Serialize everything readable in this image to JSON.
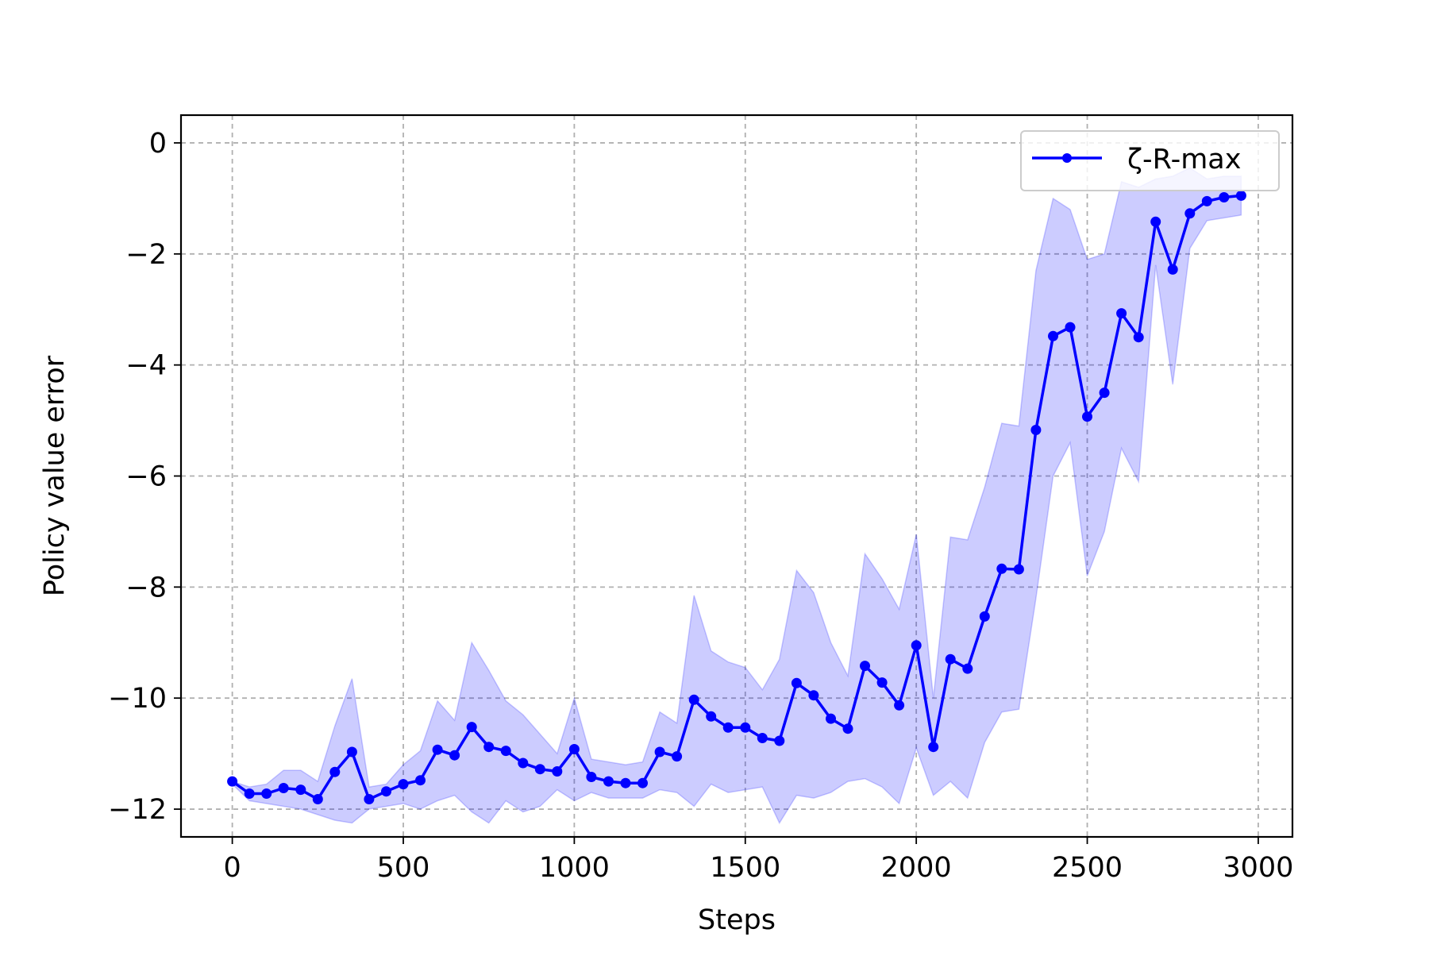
{
  "chart_data": {
    "type": "line",
    "title": "",
    "xlabel": "Steps",
    "ylabel": "Policy value error",
    "xlim": [
      -150,
      3100
    ],
    "ylim": [
      -12.5,
      0.5
    ],
    "xticks": [
      0,
      500,
      1000,
      1500,
      2000,
      2500,
      3000
    ],
    "xtick_labels": [
      "0",
      "500",
      "1000",
      "1500",
      "2000",
      "2500",
      "3000"
    ],
    "yticks": [
      0,
      -2,
      -4,
      -6,
      -8,
      -10,
      -12
    ],
    "ytick_labels": [
      "0",
      "−2",
      "−4",
      "−6",
      "−8",
      "−10",
      "−12"
    ],
    "grid": true,
    "legend_position": "top-right",
    "series": [
      {
        "name": "ζ-R-max",
        "color": "#0000ff",
        "band_color": "#0000ff",
        "band_opacity": 0.2,
        "x": [
          0,
          50,
          100,
          150,
          200,
          250,
          300,
          350,
          400,
          450,
          500,
          550,
          600,
          650,
          700,
          750,
          800,
          850,
          900,
          950,
          1000,
          1050,
          1100,
          1150,
          1200,
          1250,
          1300,
          1350,
          1400,
          1450,
          1500,
          1550,
          1600,
          1650,
          1700,
          1750,
          1800,
          1850,
          1900,
          1950,
          2000,
          2050,
          2100,
          2150,
          2200,
          2250,
          2300,
          2350,
          2400,
          2450,
          2500,
          2550,
          2600,
          2650,
          2700,
          2750,
          2800,
          2850,
          2900,
          2950
        ],
        "y": [
          -11.5,
          -11.72,
          -11.72,
          -11.62,
          -11.65,
          -11.82,
          -11.33,
          -10.97,
          -11.82,
          -11.68,
          -11.55,
          -11.48,
          -10.93,
          -11.03,
          -10.52,
          -10.88,
          -10.95,
          -11.17,
          -11.28,
          -11.32,
          -10.92,
          -11.42,
          -11.5,
          -11.53,
          -11.53,
          -10.97,
          -11.05,
          -10.03,
          -10.33,
          -10.53,
          -10.53,
          -10.72,
          -10.77,
          -9.73,
          -9.95,
          -10.37,
          -10.55,
          -9.42,
          -9.72,
          -10.13,
          -9.05,
          -10.88,
          -9.3,
          -9.47,
          -8.53,
          -7.67,
          -7.68,
          -5.17,
          -3.48,
          -3.32,
          -4.93,
          -4.5,
          -3.07,
          -3.5,
          -1.42,
          -2.28,
          -1.27,
          -1.05,
          -0.98,
          -0.95
        ],
        "lower": [
          -11.55,
          -11.85,
          -11.9,
          -11.95,
          -12.0,
          -12.1,
          -12.2,
          -12.25,
          -12.0,
          -11.95,
          -11.9,
          -12.0,
          -11.85,
          -11.75,
          -12.05,
          -12.25,
          -11.85,
          -12.05,
          -11.95,
          -11.65,
          -11.85,
          -11.7,
          -11.8,
          -11.8,
          -11.8,
          -11.65,
          -11.7,
          -11.95,
          -11.55,
          -11.7,
          -11.65,
          -11.6,
          -12.25,
          -11.75,
          -11.8,
          -11.7,
          -11.5,
          -11.45,
          -11.6,
          -11.9,
          -10.9,
          -11.75,
          -11.5,
          -11.8,
          -10.8,
          -10.25,
          -10.2,
          -8.2,
          -6.0,
          -5.4,
          -7.8,
          -7.0,
          -5.5,
          -6.1,
          -2.2,
          -4.35,
          -1.9,
          -1.4,
          -1.35,
          -1.3
        ],
        "upper": [
          -11.5,
          -11.6,
          -11.55,
          -11.3,
          -11.3,
          -11.5,
          -10.5,
          -9.65,
          -11.6,
          -11.55,
          -11.2,
          -10.95,
          -10.05,
          -10.4,
          -9.0,
          -9.5,
          -10.05,
          -10.3,
          -10.65,
          -11.0,
          -10.0,
          -11.1,
          -11.15,
          -11.2,
          -11.15,
          -10.25,
          -10.45,
          -8.15,
          -9.15,
          -9.35,
          -9.45,
          -9.85,
          -9.3,
          -7.7,
          -8.1,
          -9.0,
          -9.6,
          -7.4,
          -7.85,
          -8.4,
          -7.05,
          -10.0,
          -7.1,
          -7.15,
          -6.2,
          -5.05,
          -5.1,
          -2.3,
          -1.0,
          -1.2,
          -2.1,
          -2.0,
          -0.7,
          -0.8,
          -0.65,
          -0.6,
          -0.45,
          -0.65,
          -0.6,
          -0.6
        ]
      }
    ]
  }
}
